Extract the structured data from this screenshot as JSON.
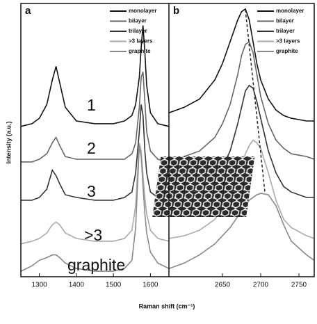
{
  "chart_data": [
    {
      "type": "line",
      "panel": "a",
      "xlabel": "Raman shift (cm⁻¹)",
      "ylabel": "Intensity (a.u.)",
      "xlim": [
        1250,
        1650
      ],
      "ylim": [
        0,
        10
      ],
      "xticks": [
        1300,
        1400,
        1500,
        1600
      ],
      "grid": false,
      "legend": "upper right",
      "x": [
        1250,
        1280,
        1300,
        1320,
        1335,
        1345,
        1355,
        1370,
        1400,
        1450,
        1500,
        1530,
        1550,
        1560,
        1570,
        1575,
        1580,
        1585,
        1590,
        1600,
        1620,
        1650
      ],
      "series": [
        {
          "name": "monolayer",
          "color": "#111111",
          "values": [
            5.5,
            5.6,
            5.8,
            6.3,
            7.2,
            7.7,
            7.1,
            6.2,
            5.7,
            5.6,
            5.6,
            5.7,
            5.9,
            6.3,
            7.3,
            8.4,
            9.2,
            8.2,
            7.0,
            6.0,
            5.6,
            5.5
          ]
        },
        {
          "name": "bilayer",
          "color": "#666666",
          "values": [
            4.2,
            4.2,
            4.3,
            4.5,
            4.9,
            5.1,
            4.8,
            4.4,
            4.3,
            4.3,
            4.3,
            4.3,
            4.5,
            4.9,
            6.2,
            7.3,
            7.5,
            6.4,
            5.3,
            4.6,
            4.3,
            4.2
          ]
        },
        {
          "name": "trilayer",
          "color": "#333333",
          "values": [
            2.8,
            2.8,
            2.9,
            3.2,
            3.9,
            3.7,
            3.4,
            3.0,
            2.9,
            2.8,
            2.8,
            2.9,
            3.1,
            3.8,
            5.3,
            6.3,
            5.9,
            4.6,
            3.8,
            3.1,
            2.9,
            2.8
          ]
        },
        {
          "name": ">3 layers",
          "color": "#aaaaaa",
          "values": [
            1.2,
            1.3,
            1.4,
            1.6,
            1.9,
            2.0,
            1.9,
            1.6,
            1.4,
            1.3,
            1.3,
            1.4,
            1.7,
            2.6,
            4.9,
            4.6,
            3.7,
            2.9,
            2.3,
            1.7,
            1.4,
            1.3
          ]
        },
        {
          "name": "graphite",
          "color": "#888888",
          "values": [
            0.2,
            0.4,
            0.6,
            0.7,
            0.8,
            0.8,
            0.7,
            0.5,
            0.3,
            0.2,
            0.2,
            0.3,
            0.6,
            1.8,
            4.8,
            4.4,
            3.3,
            2.3,
            1.6,
            0.9,
            0.5,
            0.3
          ]
        }
      ],
      "annotations": [
        "1",
        "2",
        "3",
        ">3",
        "graphite"
      ]
    },
    {
      "type": "line",
      "panel": "b",
      "xlim": [
        2580,
        2770
      ],
      "ylim": [
        0,
        10
      ],
      "xticks": [
        2650,
        2700,
        2750
      ],
      "grid": false,
      "legend": "upper right",
      "x": [
        2580,
        2600,
        2620,
        2640,
        2650,
        2660,
        2670,
        2675,
        2680,
        2685,
        2690,
        2695,
        2700,
        2710,
        2720,
        2730,
        2740,
        2760,
        2770
      ],
      "series": [
        {
          "name": "monolayer",
          "color": "#111111",
          "values": [
            6.0,
            6.2,
            6.5,
            7.2,
            7.8,
            8.6,
            9.4,
            9.7,
            9.8,
            9.4,
            8.6,
            7.8,
            7.2,
            6.5,
            6.1,
            5.9,
            5.8,
            5.7,
            5.7
          ]
        },
        {
          "name": "bilayer",
          "color": "#666666",
          "values": [
            4.3,
            4.4,
            4.6,
            5.1,
            5.6,
            6.3,
            7.4,
            8.1,
            8.5,
            8.6,
            8.2,
            7.4,
            6.6,
            5.6,
            5.0,
            4.7,
            4.5,
            4.4,
            4.3
          ]
        },
        {
          "name": "trilayer",
          "color": "#333333",
          "values": [
            2.9,
            3.0,
            3.2,
            3.6,
            4.0,
            4.6,
            5.6,
            6.2,
            6.8,
            7.0,
            6.9,
            6.4,
            5.8,
            4.6,
            3.8,
            3.3,
            3.1,
            2.9,
            2.9
          ]
        },
        {
          "name": ">3 layers",
          "color": "#aaaaaa",
          "values": [
            1.4,
            1.5,
            1.7,
            2.1,
            2.5,
            3.0,
            3.7,
            4.1,
            4.5,
            4.8,
            5.0,
            4.9,
            4.7,
            3.8,
            2.8,
            2.1,
            1.8,
            1.5,
            1.4
          ]
        },
        {
          "name": "graphite",
          "color": "#888888",
          "values": [
            0.3,
            0.5,
            0.8,
            1.2,
            1.5,
            1.8,
            2.2,
            2.4,
            2.6,
            2.8,
            2.9,
            3.0,
            3.05,
            3.0,
            2.6,
            1.9,
            1.3,
            0.8,
            0.6
          ]
        }
      ]
    }
  ]
}
